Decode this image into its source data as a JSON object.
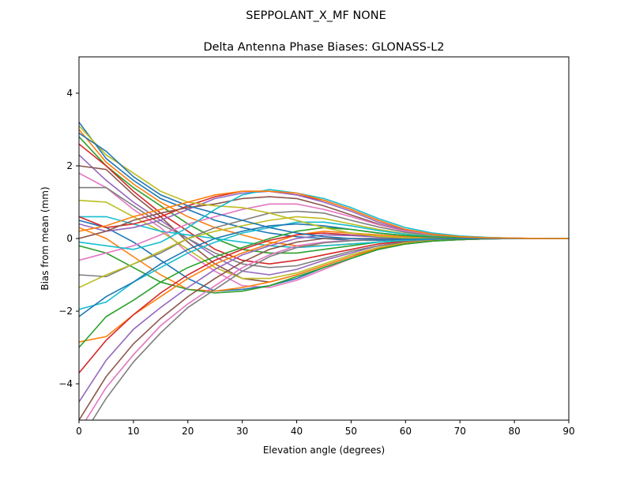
{
  "chart_data": {
    "type": "line",
    "suptitle": "SEPPOLANT_X_MF  NONE",
    "title": "Delta Antenna Phase Biases: GLONASS-L2",
    "xlabel": "Elevation angle (degrees)",
    "ylabel": "Bias from mean (mm)",
    "xlim": [
      0,
      90
    ],
    "ylim": [
      -5,
      5
    ],
    "xticks": [
      0,
      10,
      20,
      30,
      40,
      50,
      60,
      70,
      80,
      90
    ],
    "xtick_labels": [
      "0",
      "10",
      "20",
      "30",
      "40",
      "50",
      "60",
      "70",
      "80",
      "90"
    ],
    "yticks": [
      -4,
      -2,
      0,
      2,
      4
    ],
    "ytick_labels": [
      "−4",
      "−2",
      "0",
      "2",
      "4"
    ],
    "grid": false,
    "colors": [
      "#1f77b4",
      "#ff7f0e",
      "#2ca02c",
      "#d62728",
      "#9467bd",
      "#8c564b",
      "#e377c2",
      "#7f7f7f",
      "#bcbd22",
      "#17becf"
    ],
    "x": [
      0,
      5,
      10,
      15,
      20,
      25,
      30,
      35,
      40,
      45,
      50,
      55,
      60,
      65,
      70,
      75,
      80,
      85,
      90
    ],
    "series": [
      [
        3.2,
        2.2,
        1.6,
        1.1,
        0.8,
        0.5,
        0.3,
        0.15,
        0.05,
        0,
        -0.05,
        -0.05,
        -0.03,
        -0.02,
        0,
        0,
        0,
        0,
        0
      ],
      [
        3.0,
        2.1,
        1.5,
        1.0,
        0.6,
        0.3,
        0.1,
        -0.1,
        -0.2,
        -0.2,
        -0.15,
        -0.1,
        -0.05,
        -0.03,
        0,
        0,
        0,
        0,
        0
      ],
      [
        2.8,
        2.0,
        1.4,
        0.9,
        0.4,
        0.0,
        -0.3,
        -0.4,
        -0.4,
        -0.3,
        -0.2,
        -0.1,
        -0.06,
        -0.03,
        -0.01,
        0,
        0,
        0,
        0
      ],
      [
        2.6,
        2.0,
        1.3,
        0.7,
        0.2,
        -0.3,
        -0.6,
        -0.7,
        -0.6,
        -0.45,
        -0.3,
        -0.15,
        -0.08,
        -0.04,
        -0.02,
        0,
        0,
        0,
        0
      ],
      [
        2.3,
        1.6,
        1.0,
        0.5,
        0.0,
        -0.5,
        -0.9,
        -1.0,
        -0.85,
        -0.6,
        -0.4,
        -0.2,
        -0.1,
        -0.05,
        -0.02,
        0,
        0,
        0,
        0
      ],
      [
        2.0,
        1.9,
        1.2,
        0.6,
        -0.1,
        -0.7,
        -1.1,
        -1.2,
        -1.0,
        -0.75,
        -0.5,
        -0.25,
        -0.12,
        -0.06,
        -0.03,
        -0.01,
        0,
        0,
        0
      ],
      [
        1.8,
        1.4,
        0.8,
        0.3,
        -0.4,
        -0.9,
        -1.3,
        -1.35,
        -1.15,
        -0.85,
        -0.55,
        -0.3,
        -0.15,
        -0.07,
        -0.03,
        -0.01,
        0,
        0,
        0
      ],
      [
        1.4,
        1.4,
        0.9,
        0.4,
        0.0,
        -0.4,
        -0.7,
        -0.8,
        -0.75,
        -0.55,
        -0.35,
        -0.2,
        -0.1,
        -0.05,
        -0.02,
        0,
        0,
        0,
        0
      ],
      [
        1.05,
        1.0,
        0.6,
        0.2,
        -0.3,
        -0.8,
        -1.1,
        -1.1,
        -0.95,
        -0.7,
        -0.45,
        -0.25,
        -0.12,
        -0.06,
        -0.02,
        0,
        0,
        0,
        0
      ],
      [
        0.6,
        0.6,
        0.4,
        0.2,
        0.1,
        0.0,
        -0.1,
        -0.2,
        -0.25,
        -0.2,
        -0.15,
        -0.1,
        -0.05,
        -0.02,
        0,
        0,
        0,
        0,
        0
      ],
      [
        0.5,
        0.3,
        -0.1,
        -0.6,
        -1.1,
        -1.45,
        -1.4,
        -1.3,
        -1.1,
        -0.8,
        -0.55,
        -0.3,
        -0.15,
        -0.07,
        -0.03,
        -0.01,
        0,
        0,
        0
      ],
      [
        0.3,
        0.0,
        -0.5,
        -1.0,
        -1.4,
        -1.45,
        -1.35,
        -1.2,
        -1.0,
        -0.75,
        -0.5,
        -0.28,
        -0.14,
        -0.06,
        -0.03,
        -0.01,
        0,
        0,
        0
      ],
      [
        -0.2,
        -0.4,
        -0.8,
        -1.2,
        -1.4,
        -1.5,
        -1.45,
        -1.3,
        -1.05,
        -0.8,
        -0.55,
        -0.3,
        -0.15,
        -0.07,
        -0.03,
        -0.01,
        0,
        0,
        0
      ],
      [
        0.6,
        0.3,
        0.4,
        0.6,
        0.9,
        1.15,
        1.3,
        1.3,
        1.2,
        1.05,
        0.8,
        0.5,
        0.25,
        0.12,
        0.05,
        0.02,
        0.01,
        0,
        0
      ],
      [
        0.4,
        0.2,
        0.3,
        0.5,
        0.8,
        1.1,
        1.25,
        1.3,
        1.2,
        1.0,
        0.75,
        0.45,
        0.22,
        0.1,
        0.05,
        0.02,
        0.01,
        0,
        0
      ],
      [
        0.0,
        0.2,
        0.5,
        0.7,
        0.85,
        0.95,
        1.1,
        1.15,
        1.1,
        0.9,
        0.65,
        0.4,
        0.2,
        0.1,
        0.04,
        0.02,
        0,
        0,
        0
      ],
      [
        -0.6,
        -0.4,
        -0.2,
        0.1,
        0.4,
        0.6,
        0.8,
        0.95,
        0.95,
        0.8,
        0.6,
        0.38,
        0.2,
        0.1,
        0.04,
        0.02,
        0,
        0,
        0
      ],
      [
        -1.0,
        -1.05,
        -0.7,
        -0.4,
        0.0,
        0.3,
        0.5,
        0.7,
        0.75,
        0.7,
        0.5,
        0.32,
        0.17,
        0.08,
        0.03,
        0.01,
        0,
        0,
        0
      ],
      [
        -1.35,
        -1.0,
        -0.7,
        -0.35,
        0.0,
        0.2,
        0.35,
        0.5,
        0.6,
        0.55,
        0.4,
        0.25,
        0.13,
        0.06,
        0.02,
        0.01,
        0,
        0,
        0
      ],
      [
        -1.95,
        -1.75,
        -1.2,
        -0.8,
        -0.4,
        -0.1,
        0.15,
        0.3,
        0.45,
        0.45,
        0.35,
        0.22,
        0.12,
        0.05,
        0.02,
        0.01,
        0,
        0,
        0
      ],
      [
        -2.15,
        -1.6,
        -1.2,
        -0.7,
        -0.3,
        0.0,
        0.2,
        0.35,
        0.4,
        0.35,
        0.25,
        0.15,
        0.08,
        0.04,
        0.02,
        0,
        0,
        0,
        0
      ],
      [
        -2.85,
        -2.7,
        -2.1,
        -1.6,
        -1.1,
        -0.7,
        -0.4,
        -0.15,
        0.1,
        0.2,
        0.15,
        0.1,
        0.05,
        0.02,
        0.01,
        0,
        0,
        0,
        0
      ],
      [
        -3.0,
        -2.15,
        -1.7,
        -1.2,
        -0.8,
        -0.5,
        -0.25,
        0.0,
        0.2,
        0.3,
        0.25,
        0.15,
        0.08,
        0.04,
        0.02,
        0,
        0,
        0,
        0
      ],
      [
        -3.7,
        -2.8,
        -2.1,
        -1.5,
        -1.0,
        -0.6,
        -0.3,
        -0.05,
        0.1,
        0.15,
        0.1,
        0.05,
        0.02,
        0.01,
        0,
        0,
        0,
        0,
        0
      ],
      [
        -4.5,
        -3.35,
        -2.5,
        -1.9,
        -1.35,
        -0.85,
        -0.45,
        -0.2,
        0.0,
        0.1,
        0.08,
        0.04,
        0.02,
        0.01,
        0,
        0,
        0,
        0,
        0
      ],
      [
        -5.0,
        -3.8,
        -2.9,
        -2.2,
        -1.6,
        -1.1,
        -0.65,
        -0.3,
        -0.1,
        0.0,
        0.0,
        0,
        0,
        0,
        0,
        0,
        0,
        0,
        0
      ],
      [
        -5.3,
        -4.1,
        -3.2,
        -2.4,
        -1.8,
        -1.3,
        -0.8,
        -0.45,
        -0.2,
        -0.1,
        -0.05,
        -0.02,
        -0.01,
        0,
        0,
        0,
        0,
        0,
        0
      ],
      [
        -5.6,
        -4.4,
        -3.4,
        -2.6,
        -1.9,
        -1.4,
        -0.9,
        -0.5,
        -0.25,
        -0.12,
        -0.06,
        -0.03,
        -0.01,
        0,
        0,
        0,
        0,
        0,
        0
      ],
      [
        3.1,
        2.3,
        1.8,
        1.3,
        1.0,
        0.9,
        0.85,
        0.7,
        0.5,
        0.3,
        0.15,
        0.06,
        0.02,
        0,
        0,
        0,
        0,
        0,
        0
      ],
      [
        -0.1,
        -0.2,
        -0.3,
        -0.1,
        0.3,
        0.8,
        1.2,
        1.35,
        1.25,
        1.1,
        0.85,
        0.55,
        0.3,
        0.15,
        0.07,
        0.03,
        0.01,
        0,
        0
      ],
      [
        2.9,
        2.4,
        1.7,
        1.2,
        0.9,
        0.7,
        0.5,
        0.3,
        0.15,
        0.05,
        0,
        -0.02,
        -0.02,
        -0.01,
        0,
        0,
        0,
        0,
        0
      ],
      [
        0.2,
        0.35,
        0.6,
        0.8,
        1.0,
        1.2,
        1.3,
        1.3,
        1.25,
        1.05,
        0.8,
        0.5,
        0.25,
        0.12,
        0.05,
        0.02,
        0.01,
        0,
        0
      ]
    ]
  }
}
